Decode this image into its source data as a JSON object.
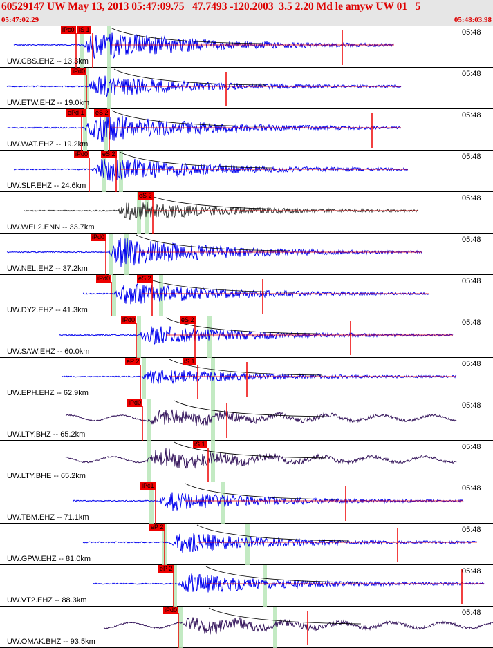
{
  "header": {
    "title": "60529147 UW May 13, 2013 05:47:09.75   47.7493 -120.2003  3.5 2.20 Md le amyw UW 01   5",
    "start_time": "05:47:02.29",
    "end_time": "05:48:03.98"
  },
  "colors": {
    "header_bg": "#e6e6e6",
    "header_text": "#dd0000",
    "trace_blue": "#0000ee",
    "trace_gray": "#333333",
    "trace_purple": "#33135a",
    "pick_red": "#ee0000",
    "coda_band": "#b9e6b9"
  },
  "traces": [
    {
      "label": "UW.CBS.EHZ -- 13.3km",
      "tick": "05:48",
      "color": "blue",
      "picks": [
        "iPc0",
        "iS 1"
      ]
    },
    {
      "label": "UW.ETW.EHZ -- 19.0km",
      "tick": "05:48",
      "color": "blue",
      "picks": [
        "iPd0"
      ]
    },
    {
      "label": "UW.WAT.EHZ -- 19.2km",
      "tick": "05:48",
      "color": "blue",
      "picks": [
        "ePd 1",
        "eS 2"
      ]
    },
    {
      "label": "UW.SLF.EHZ -- 24.6km",
      "tick": "05:48",
      "color": "blue",
      "picks": [
        "iPd0",
        "eS 2"
      ]
    },
    {
      "label": "UW.WEL2.ENN -- 33.7km",
      "tick": "05:48",
      "color": "gray",
      "picks": [
        "eS 2"
      ]
    },
    {
      "label": "UW.NEL.EHZ -- 37.2km",
      "tick": "05:48",
      "color": "blue",
      "picks": [
        "iPd0"
      ]
    },
    {
      "label": "UW.DY2.EHZ -- 41.3km",
      "tick": "05:48",
      "color": "blue",
      "picks": [
        "iPd0",
        "eS 2"
      ]
    },
    {
      "label": "UW.SAW.EHZ -- 60.0km",
      "tick": "05:48",
      "color": "blue",
      "picks": [
        "iPd0",
        "eS 2"
      ]
    },
    {
      "label": "UW.EPH.EHZ -- 62.9km",
      "tick": "05:48",
      "color": "blue",
      "picks": [
        "eP 2",
        "iS 1"
      ]
    },
    {
      "label": "UW.LTY.BHZ -- 65.2km",
      "tick": "05:48",
      "color": "purple",
      "picks": [
        "iPd0"
      ]
    },
    {
      "label": "UW.LTY.BHE -- 65.2km",
      "tick": "05:48",
      "color": "purple",
      "picks": [
        "iS 1"
      ]
    },
    {
      "label": "UW.TBM.EHZ -- 71.1km",
      "tick": "05:48",
      "color": "blue",
      "picks": [
        "iPc1"
      ]
    },
    {
      "label": "UW.GPW.EHZ -- 81.0km",
      "tick": "05:48",
      "color": "blue",
      "picks": [
        "eP 2"
      ]
    },
    {
      "label": "UW.VT2.EHZ -- 88.3km",
      "tick": "05:48",
      "color": "blue",
      "picks": [
        "eP 2"
      ]
    },
    {
      "label": "UW.OMAK.BHZ -- 93.5km",
      "tick": "05:48",
      "color": "purple",
      "picks": [
        "iPd0"
      ]
    }
  ]
}
